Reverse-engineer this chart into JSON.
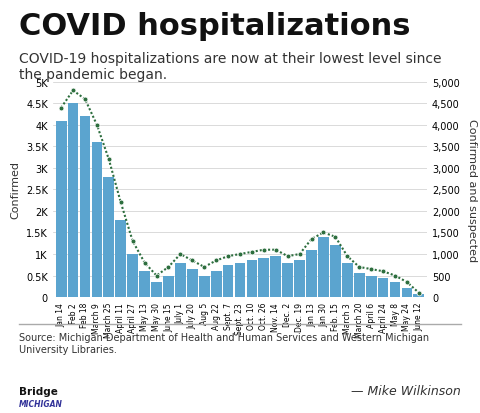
{
  "title": "COVID hospitalizations",
  "subtitle": "COVID-19 hospitalizations are now at their lowest level since\nthe pandemic began.",
  "source_text": "Source: Michigan Department of Health and Human Services and Western Michigan\nUniversity Libraries.",
  "author_text": "— Mike Wilkinson",
  "ylabel_left": "Confirmed",
  "ylabel_right": "Confirmed and suspected",
  "ylim": [
    0,
    5000
  ],
  "yticks_left": [
    0,
    500,
    1000,
    1500,
    2000,
    2500,
    3000,
    3500,
    4000,
    4500,
    5000
  ],
  "ytick_labels_left": [
    "0",
    "0.5K",
    "1K",
    "1.5K",
    "2K",
    "2.5K",
    "3K",
    "3.5K",
    "4K",
    "4.5K",
    "5K"
  ],
  "yticks_right": [
    0,
    500,
    1000,
    1500,
    2000,
    2500,
    3000,
    3500,
    4000,
    4500,
    5000
  ],
  "ytick_labels_right": [
    "0",
    "500",
    "1,000",
    "1,500",
    "2,000",
    "2,500",
    "3,000",
    "3,500",
    "4,000",
    "4,500",
    "5,000"
  ],
  "bar_color": "#5ba4cf",
  "dot_color": "#2d6e3e",
  "dot_edge_color": "#ffffff",
  "background_color": "#ffffff",
  "title_fontsize": 22,
  "subtitle_fontsize": 10,
  "xtick_labels": [
    "Jan 14",
    "Feb 2",
    "Feb 18",
    "March 9",
    "March 25",
    "April 11",
    "April 27",
    "May 13",
    "May 30",
    "June 15",
    "July 1",
    "July 20",
    "Aug 5",
    "Aug 22",
    "Sept. 7",
    "Sept. 23",
    "Oct. 10",
    "Oct. 26",
    "Nov. 14",
    "Dec. 2",
    "Dec. 19",
    "Jan 13",
    "Jan 30",
    "Feb. 15",
    "March 3",
    "March 20",
    "April 6",
    "April 24",
    "May 8",
    "May 24",
    "June 12"
  ],
  "confirmed_values": [
    4100,
    4500,
    4200,
    3600,
    2800,
    1800,
    1000,
    600,
    350,
    500,
    800,
    650,
    500,
    600,
    750,
    800,
    850,
    900,
    950,
    800,
    850,
    1100,
    1400,
    1200,
    800,
    550,
    500,
    450,
    350,
    200,
    60
  ],
  "suspected_values": [
    4400,
    4800,
    4600,
    4000,
    3200,
    2200,
    1300,
    800,
    500,
    700,
    1000,
    850,
    700,
    850,
    950,
    1000,
    1050,
    1100,
    1100,
    950,
    1000,
    1350,
    1500,
    1400,
    950,
    700,
    650,
    600,
    500,
    350,
    100
  ]
}
